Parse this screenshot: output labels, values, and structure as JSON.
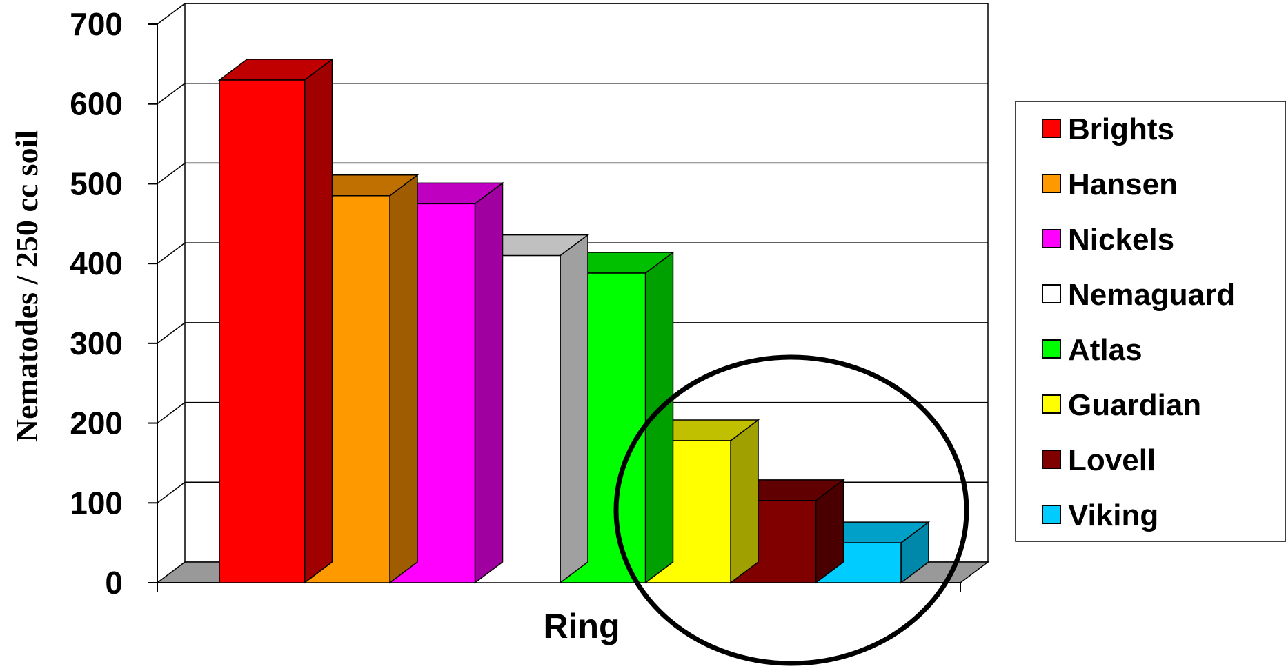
{
  "chart_data": {
    "type": "bar",
    "categories": [
      "Ring"
    ],
    "series": [
      {
        "name": "Brights",
        "values": [
          630
        ],
        "color": "#ff0000",
        "top_color": "#c00000",
        "side_color": "#a00000"
      },
      {
        "name": "Hansen",
        "values": [
          485
        ],
        "color": "#ff9900",
        "top_color": "#c07000",
        "side_color": "#a05c00"
      },
      {
        "name": "Nickels",
        "values": [
          475
        ],
        "color": "#ff00ff",
        "top_color": "#c000c0",
        "side_color": "#a000a0"
      },
      {
        "name": "Nemaguard",
        "values": [
          410
        ],
        "color": "#ffffff",
        "top_color": "#c0c0c0",
        "side_color": "#a0a0a0"
      },
      {
        "name": "Atlas",
        "values": [
          388
        ],
        "color": "#00ff00",
        "top_color": "#00c000",
        "side_color": "#00a000"
      },
      {
        "name": "Guardian",
        "values": [
          178
        ],
        "color": "#ffff00",
        "top_color": "#c0c000",
        "side_color": "#a0a000"
      },
      {
        "name": "Lovell",
        "values": [
          103
        ],
        "color": "#800000",
        "top_color": "#600000",
        "side_color": "#4a0000"
      },
      {
        "name": "Viking",
        "values": [
          50
        ],
        "color": "#00ccff",
        "top_color": "#00a0c8",
        "side_color": "#0088aa"
      }
    ],
    "title": "",
    "xlabel": "Ring",
    "ylabel": "Nematodes / 250 cc soil",
    "ylim": [
      0,
      700
    ],
    "yticks": [
      "0",
      "100",
      "200",
      "300",
      "400",
      "500",
      "600",
      "700"
    ],
    "grid": true,
    "legend_position": "right",
    "annotation": "circle around Guardian, Lovell and Viking bars"
  }
}
